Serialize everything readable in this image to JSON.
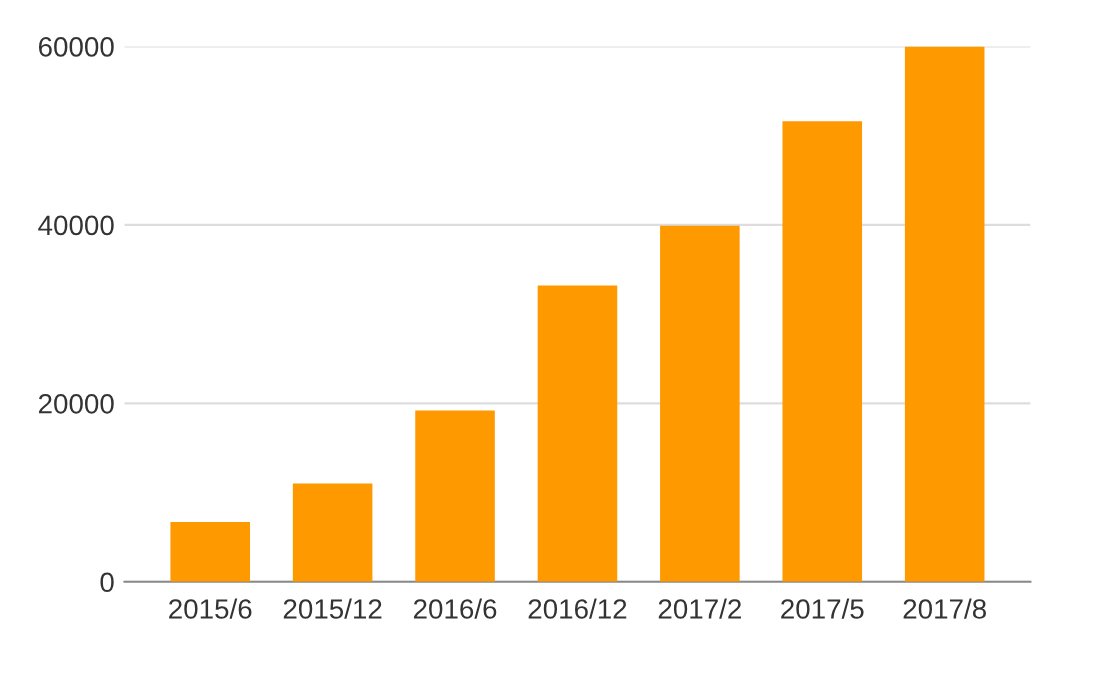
{
  "chart_data": {
    "type": "bar",
    "categories": [
      "2015/6",
      "2015/12",
      "2016/6",
      "2016/12",
      "2017/2",
      "2017/5",
      "2017/8"
    ],
    "values": [
      6700,
      11000,
      19200,
      33200,
      39900,
      51600,
      60000
    ],
    "color": "#ff9900",
    "ylim": [
      0,
      60000
    ],
    "yticks": [
      0,
      20000,
      40000,
      60000
    ],
    "grid": "y"
  }
}
